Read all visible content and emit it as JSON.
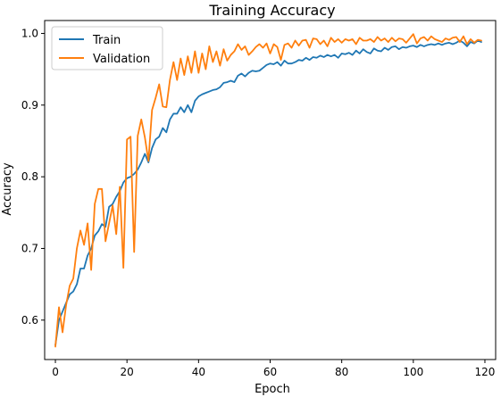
{
  "chart_data": {
    "type": "line",
    "title": "Training Accuracy",
    "xlabel": "Epoch",
    "ylabel": "Accuracy",
    "xlim": [
      -3,
      123
    ],
    "ylim": [
      0.545,
      1.018
    ],
    "xticks": [
      0,
      20,
      40,
      60,
      80,
      100,
      120
    ],
    "xtick_labels": [
      "0",
      "20",
      "40",
      "60",
      "80",
      "100",
      "120"
    ],
    "yticks": [
      0.6,
      0.7,
      0.8,
      0.9,
      1.0
    ],
    "ytick_labels": [
      "0.6",
      "0.7",
      "0.8",
      "0.9",
      "1.0"
    ],
    "grid": false,
    "legend_position": "top-left",
    "series": [
      {
        "name": "Train",
        "color": "#1f77b4",
        "y": [
          0.565,
          0.6,
          0.612,
          0.624,
          0.636,
          0.64,
          0.65,
          0.672,
          0.672,
          0.69,
          0.7,
          0.718,
          0.724,
          0.734,
          0.73,
          0.758,
          0.762,
          0.772,
          0.78,
          0.792,
          0.798,
          0.8,
          0.804,
          0.81,
          0.82,
          0.832,
          0.82,
          0.84,
          0.852,
          0.856,
          0.868,
          0.862,
          0.88,
          0.888,
          0.888,
          0.897,
          0.89,
          0.9,
          0.89,
          0.906,
          0.912,
          0.915,
          0.917,
          0.919,
          0.921,
          0.922,
          0.925,
          0.931,
          0.932,
          0.934,
          0.932,
          0.941,
          0.944,
          0.94,
          0.945,
          0.948,
          0.947,
          0.948,
          0.952,
          0.956,
          0.958,
          0.957,
          0.96,
          0.955,
          0.962,
          0.958,
          0.958,
          0.96,
          0.963,
          0.962,
          0.966,
          0.963,
          0.967,
          0.966,
          0.969,
          0.967,
          0.97,
          0.968,
          0.97,
          0.966,
          0.972,
          0.971,
          0.973,
          0.97,
          0.976,
          0.972,
          0.978,
          0.974,
          0.972,
          0.979,
          0.976,
          0.975,
          0.98,
          0.977,
          0.981,
          0.982,
          0.978,
          0.981,
          0.98,
          0.982,
          0.983,
          0.981,
          0.984,
          0.982,
          0.984,
          0.985,
          0.984,
          0.986,
          0.984,
          0.986,
          0.987,
          0.985,
          0.987,
          0.99,
          0.987,
          0.982,
          0.988,
          0.986,
          0.99,
          0.988
        ]
      },
      {
        "name": "Validation",
        "color": "#ff7f0e",
        "y": [
          0.563,
          0.618,
          0.583,
          0.621,
          0.648,
          0.658,
          0.7,
          0.725,
          0.705,
          0.735,
          0.67,
          0.762,
          0.783,
          0.783,
          0.71,
          0.735,
          0.76,
          0.72,
          0.786,
          0.673,
          0.852,
          0.856,
          0.695,
          0.857,
          0.88,
          0.855,
          0.822,
          0.893,
          0.91,
          0.929,
          0.898,
          0.897,
          0.935,
          0.96,
          0.935,
          0.965,
          0.942,
          0.968,
          0.945,
          0.975,
          0.945,
          0.972,
          0.95,
          0.982,
          0.96,
          0.975,
          0.955,
          0.978,
          0.962,
          0.97,
          0.975,
          0.985,
          0.977,
          0.982,
          0.97,
          0.975,
          0.981,
          0.985,
          0.98,
          0.986,
          0.972,
          0.985,
          0.981,
          0.963,
          0.984,
          0.986,
          0.98,
          0.99,
          0.983,
          0.99,
          0.991,
          0.98,
          0.993,
          0.992,
          0.985,
          0.99,
          0.982,
          0.994,
          0.988,
          0.992,
          0.987,
          0.992,
          0.99,
          0.992,
          0.985,
          0.994,
          0.99,
          0.99,
          0.992,
          0.988,
          0.995,
          0.99,
          0.993,
          0.988,
          0.994,
          0.989,
          0.993,
          0.992,
          0.987,
          0.993,
          0.999,
          0.986,
          0.993,
          0.995,
          0.99,
          0.996,
          0.992,
          0.99,
          0.988,
          0.993,
          0.991,
          0.994,
          0.995,
          0.988,
          0.996,
          0.985,
          0.992,
          0.987,
          0.991,
          0.99
        ]
      }
    ]
  }
}
